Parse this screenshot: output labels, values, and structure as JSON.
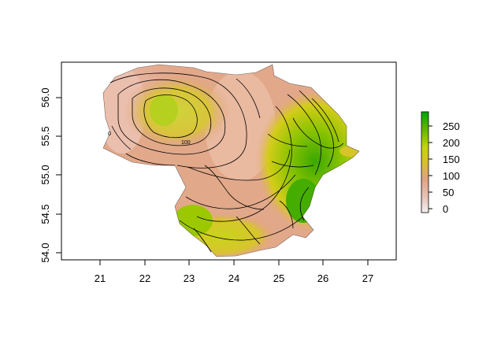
{
  "chart_data": {
    "type": "heatmap",
    "title": "",
    "xlabel": "",
    "ylabel": "",
    "xlim": [
      20.1,
      27.6
    ],
    "ylim": [
      53.9,
      56.45
    ],
    "x_ticks": [
      "21",
      "22",
      "23",
      "24",
      "25",
      "26",
      "27"
    ],
    "y_ticks": [
      "54.0",
      "54.5",
      "55.0",
      "55.5",
      "56.0"
    ],
    "legend": {
      "position": "right",
      "range": [
        0,
        290
      ],
      "ticks": [
        "0",
        "50",
        "100",
        "150",
        "200",
        "250"
      ],
      "colors": [
        "#f2f2f2",
        "#e8c3b8",
        "#e2a283",
        "#d8c22a",
        "#c3d40f",
        "#66b600",
        "#00a600"
      ]
    },
    "contour_labels": [
      "0",
      "100"
    ],
    "palette_name": "terrain"
  }
}
